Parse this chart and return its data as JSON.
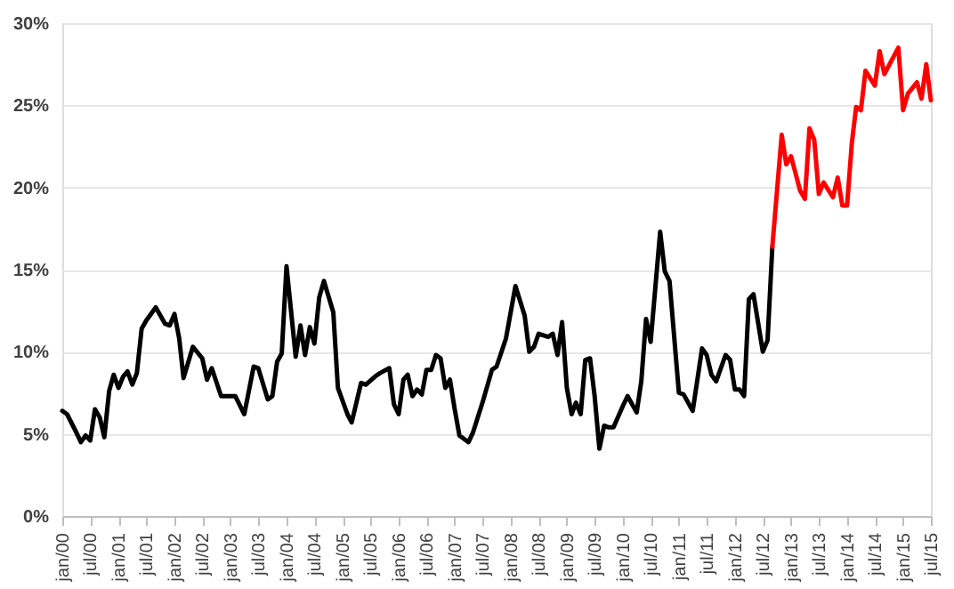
{
  "chart_data": {
    "type": "line",
    "series": [
      {
        "color": "#000000",
        "x": [
          "2000-01",
          "2000-02",
          "2000-04",
          "2000-05",
          "2000-06",
          "2000-07",
          "2000-08",
          "2000-09",
          "2000-10",
          "2000-11",
          "2000-12",
          "2001-01",
          "2001-02",
          "2001-03",
          "2001-04",
          "2001-05",
          "2001-06",
          "2001-07",
          "2001-09",
          "2001-11",
          "2001-12",
          "2002-01",
          "2002-02",
          "2002-03",
          "2002-05",
          "2002-07",
          "2002-08",
          "2002-09",
          "2002-11",
          "2003-02",
          "2003-04",
          "2003-06",
          "2003-07",
          "2003-09",
          "2003-10",
          "2003-11",
          "2003-12",
          "2004-01",
          "2004-03",
          "2004-04",
          "2004-05",
          "2004-06",
          "2004-07",
          "2004-08",
          "2004-09",
          "2004-11",
          "2004-12",
          "2005-02",
          "2005-03",
          "2005-05",
          "2005-06",
          "2005-08",
          "2005-09",
          "2005-11",
          "2005-12",
          "2006-01",
          "2006-02",
          "2006-03",
          "2006-04",
          "2006-05",
          "2006-06",
          "2006-07",
          "2006-08",
          "2006-09",
          "2006-10",
          "2006-11",
          "2006-12",
          "2007-01",
          "2007-02",
          "2007-04",
          "2007-05",
          "2007-07",
          "2007-09",
          "2007-10",
          "2007-12",
          "2008-02",
          "2008-04",
          "2008-05",
          "2008-06",
          "2008-07",
          "2008-09",
          "2008-10",
          "2008-11",
          "2008-12",
          "2009-01",
          "2009-02",
          "2009-03",
          "2009-04",
          "2009-05",
          "2009-06",
          "2009-07",
          "2009-08",
          "2009-09",
          "2009-10",
          "2009-11",
          "2010-01",
          "2010-02",
          "2010-04",
          "2010-05",
          "2010-06",
          "2010-07",
          "2010-09",
          "2010-10",
          "2010-11",
          "2011-01",
          "2011-02",
          "2011-04",
          "2011-06",
          "2011-07",
          "2011-08",
          "2011-09",
          "2011-11",
          "2011-12",
          "2012-01",
          "2012-02",
          "2012-03",
          "2012-04",
          "2012-05",
          "2012-07",
          "2012-08",
          "2012-09"
        ],
        "values": [
          6.4,
          6.2,
          5.1,
          4.5,
          4.9,
          4.6,
          6.5,
          6.0,
          4.8,
          7.6,
          8.6,
          7.8,
          8.5,
          8.8,
          8.0,
          8.7,
          11.4,
          11.9,
          12.7,
          11.7,
          11.6,
          12.3,
          10.8,
          8.4,
          10.3,
          9.6,
          8.3,
          9.0,
          7.3,
          7.3,
          6.2,
          9.1,
          9.0,
          7.1,
          7.3,
          9.4,
          9.9,
          15.2,
          9.7,
          11.6,
          9.8,
          11.5,
          10.5,
          13.3,
          14.3,
          12.4,
          7.8,
          6.2,
          5.7,
          8.1,
          8.0,
          8.5,
          8.7,
          9.0,
          6.8,
          6.2,
          8.3,
          8.6,
          7.3,
          7.7,
          7.4,
          8.9,
          8.9,
          9.8,
          9.6,
          7.8,
          8.3,
          6.5,
          4.9,
          4.5,
          5.1,
          6.9,
          8.9,
          9.1,
          10.8,
          14.0,
          12.2,
          10.0,
          10.3,
          11.1,
          10.9,
          11.1,
          9.8,
          11.8,
          7.8,
          6.2,
          6.9,
          6.2,
          9.5,
          9.6,
          7.3,
          4.1,
          5.5,
          5.4,
          5.4,
          6.7,
          7.3,
          6.3,
          8.2,
          12.0,
          10.6,
          17.3,
          14.9,
          14.3,
          7.5,
          7.4,
          6.4,
          10.2,
          9.8,
          8.6,
          8.2,
          9.8,
          9.5,
          7.7,
          7.7,
          7.3,
          13.2,
          13.5,
          10.0,
          10.7,
          16.4
        ]
      },
      {
        "color": "#ff0000",
        "x": [
          "2012-09",
          "2012-11",
          "2012-12",
          "2013-01",
          "2013-03",
          "2013-04",
          "2013-05",
          "2013-06",
          "2013-07",
          "2013-08",
          "2013-10",
          "2013-11",
          "2013-12",
          "2014-01",
          "2014-02",
          "2014-03",
          "2014-04",
          "2014-05",
          "2014-07",
          "2014-08",
          "2014-09",
          "2014-12",
          "2015-01",
          "2015-02",
          "2015-04",
          "2015-05",
          "2015-06",
          "2015-07"
        ],
        "values": [
          16.4,
          23.2,
          21.4,
          21.9,
          19.8,
          19.3,
          23.6,
          22.9,
          19.6,
          20.3,
          19.4,
          20.6,
          18.9,
          18.9,
          22.7,
          24.9,
          24.7,
          27.1,
          26.2,
          28.3,
          26.9,
          28.5,
          24.7,
          25.7,
          26.4,
          25.4,
          27.5,
          25.3
        ]
      }
    ],
    "xlim": [
      "2000-01",
      "2015-07"
    ],
    "xticks": [
      {
        "value": "2000-01",
        "label": "jan/00"
      },
      {
        "value": "2000-07",
        "label": "jul/00"
      },
      {
        "value": "2001-01",
        "label": "jan/01"
      },
      {
        "value": "2001-07",
        "label": "jul/01"
      },
      {
        "value": "2002-01",
        "label": "jan/02"
      },
      {
        "value": "2002-07",
        "label": "jul/02"
      },
      {
        "value": "2003-01",
        "label": "jan/03"
      },
      {
        "value": "2003-07",
        "label": "jul/03"
      },
      {
        "value": "2004-01",
        "label": "jan/04"
      },
      {
        "value": "2004-07",
        "label": "jul/04"
      },
      {
        "value": "2005-01",
        "label": "jan/05"
      },
      {
        "value": "2005-07",
        "label": "jul/05"
      },
      {
        "value": "2006-01",
        "label": "jan/06"
      },
      {
        "value": "2006-07",
        "label": "jul/06"
      },
      {
        "value": "2007-01",
        "label": "jan/07"
      },
      {
        "value": "2007-07",
        "label": "jul/07"
      },
      {
        "value": "2008-01",
        "label": "jan/08"
      },
      {
        "value": "2008-07",
        "label": "jul/08"
      },
      {
        "value": "2009-01",
        "label": "jan/09"
      },
      {
        "value": "2009-07",
        "label": "jul/09"
      },
      {
        "value": "2010-01",
        "label": "jan/10"
      },
      {
        "value": "2010-07",
        "label": "jul/10"
      },
      {
        "value": "2011-01",
        "label": "jan/11"
      },
      {
        "value": "2011-07",
        "label": "jul/11"
      },
      {
        "value": "2012-01",
        "label": "jan/12"
      },
      {
        "value": "2012-07",
        "label": "jul/12"
      },
      {
        "value": "2013-01",
        "label": "jan/13"
      },
      {
        "value": "2013-07",
        "label": "jul/13"
      },
      {
        "value": "2014-01",
        "label": "jan/14"
      },
      {
        "value": "2014-07",
        "label": "jul/14"
      },
      {
        "value": "2015-01",
        "label": "jan/15"
      },
      {
        "value": "2015-07",
        "label": "jul/15"
      }
    ],
    "ylim": [
      0,
      30
    ],
    "yticks": [
      {
        "value": 0,
        "label": "0%"
      },
      {
        "value": 5,
        "label": "5%"
      },
      {
        "value": 10,
        "label": "10%"
      },
      {
        "value": 15,
        "label": "15%"
      },
      {
        "value": 20,
        "label": "20%"
      },
      {
        "value": 25,
        "label": "25%"
      },
      {
        "value": 30,
        "label": "30%"
      }
    ],
    "grid": "y",
    "marker": "none",
    "line_style": "solid"
  }
}
